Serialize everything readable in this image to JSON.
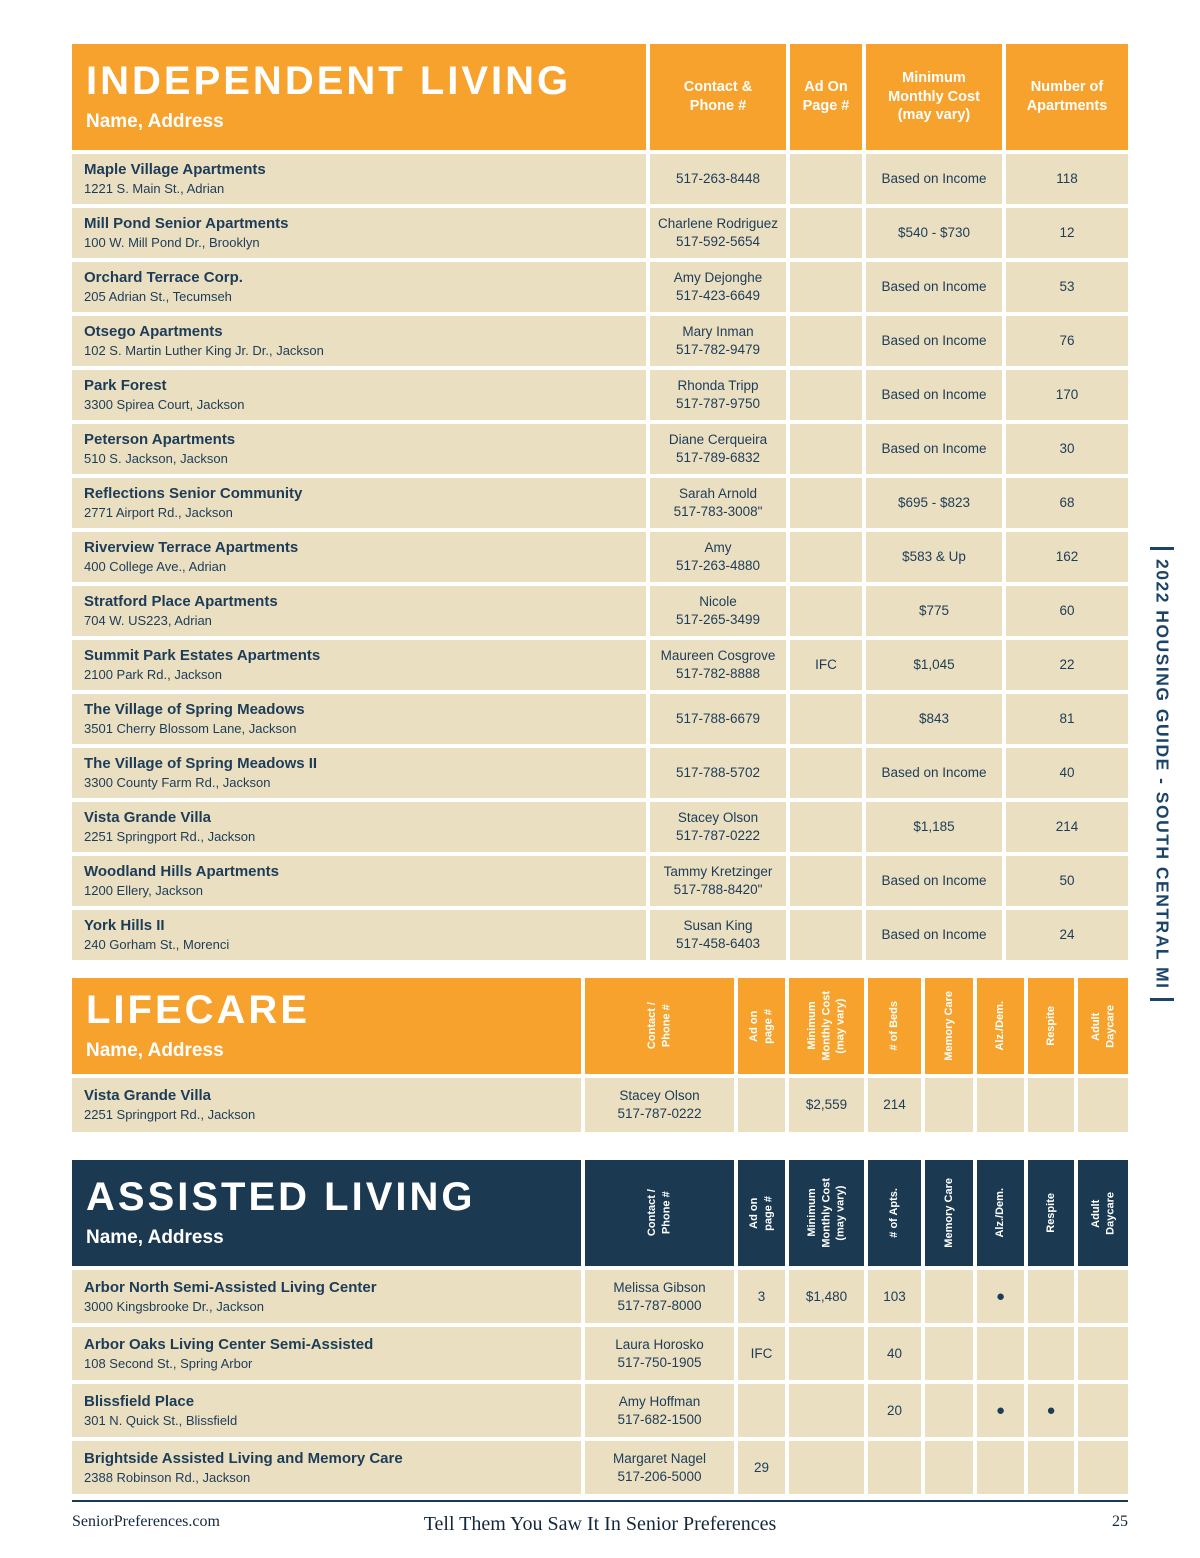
{
  "colors": {
    "orange": "#F6A22D",
    "navy_header": "#1B3A52",
    "row_beige": "#EBDFC1",
    "text_navy": "#1C3C58",
    "sidebar_navy": "#1C4468"
  },
  "sidebar": {
    "text": "2022 HOUSING GUIDE - SOUTH CENTRAL MI"
  },
  "footer": {
    "site": "SeniorPreferences.com",
    "tagline": "Tell Them You Saw It In Senior Preferences",
    "page_number": "25"
  },
  "independent_living": {
    "title": "INDEPENDENT LIVING",
    "subtitle": "Name, Address",
    "columns": [
      "Contact &\nPhone #",
      "Ad On\nPage #",
      "Minimum\nMonthly Cost\n(may vary)",
      "Number of\nApartments"
    ],
    "rows": [
      {
        "name": "Maple Village Apartments",
        "address": "1221 S. Main St., Adrian",
        "contact": "517-263-8448",
        "ad_page": "",
        "cost": "Based on Income",
        "apartments": "118"
      },
      {
        "name": "Mill Pond Senior Apartments",
        "address": "100 W. Mill Pond Dr., Brooklyn",
        "contact": "Charlene Rodriguez\n517-592-5654",
        "ad_page": "",
        "cost": "$540 - $730",
        "apartments": "12"
      },
      {
        "name": "Orchard Terrace Corp.",
        "address": "205 Adrian St., Tecumseh",
        "contact": "Amy Dejonghe\n517-423-6649",
        "ad_page": "",
        "cost": "Based on Income",
        "apartments": "53"
      },
      {
        "name": "Otsego Apartments",
        "address": "102 S. Martin Luther King Jr. Dr., Jackson",
        "contact": "Mary Inman\n517-782-9479",
        "ad_page": "",
        "cost": "Based on Income",
        "apartments": "76"
      },
      {
        "name": "Park Forest",
        "address": "3300 Spirea Court, Jackson",
        "contact": "Rhonda Tripp\n517-787-9750",
        "ad_page": "",
        "cost": "Based on Income",
        "apartments": "170"
      },
      {
        "name": "Peterson Apartments",
        "address": "510 S. Jackson, Jackson",
        "contact": "Diane Cerqueira\n517-789-6832",
        "ad_page": "",
        "cost": "Based on Income",
        "apartments": "30"
      },
      {
        "name": "Reflections Senior Community",
        "address": "2771 Airport Rd., Jackson",
        "contact": "Sarah Arnold\n517-783-3008\"",
        "ad_page": "",
        "cost": "$695 - $823",
        "apartments": "68"
      },
      {
        "name": "Riverview Terrace Apartments",
        "address": "400 College Ave., Adrian",
        "contact": "Amy\n517-263-4880",
        "ad_page": "",
        "cost": "$583 & Up",
        "apartments": "162"
      },
      {
        "name": "Stratford Place Apartments",
        "address": "704 W. US223, Adrian",
        "contact": "Nicole\n517-265-3499",
        "ad_page": "",
        "cost": "$775",
        "apartments": "60"
      },
      {
        "name": "Summit Park Estates Apartments",
        "address": "2100 Park Rd., Jackson",
        "contact": "Maureen Cosgrove\n517-782-8888",
        "ad_page": "IFC",
        "cost": "$1,045",
        "apartments": "22"
      },
      {
        "name": "The Village of Spring Meadows",
        "address": "3501 Cherry Blossom Lane, Jackson",
        "contact": "517-788-6679",
        "ad_page": "",
        "cost": "$843",
        "apartments": "81"
      },
      {
        "name": "The Village of Spring Meadows II",
        "address": "3300 County Farm Rd., Jackson",
        "contact": "517-788-5702",
        "ad_page": "",
        "cost": "Based on Income",
        "apartments": "40"
      },
      {
        "name": "Vista Grande Villa",
        "address": "2251 Springport Rd., Jackson",
        "contact": "Stacey Olson\n517-787-0222",
        "ad_page": "",
        "cost": "$1,185",
        "apartments": "214"
      },
      {
        "name": "Woodland Hills Apartments",
        "address": "1200 Ellery, Jackson",
        "contact": "Tammy Kretzinger\n517-788-8420\"",
        "ad_page": "",
        "cost": "Based on Income",
        "apartments": "50"
      },
      {
        "name": "York Hills II",
        "address": "240 Gorham St., Morenci",
        "contact": "Susan King\n517-458-6403",
        "ad_page": "",
        "cost": "Based on Income",
        "apartments": "24"
      }
    ]
  },
  "lifecare": {
    "title": "LIFECARE",
    "subtitle": "Name, Address",
    "columns": [
      "Contact /\nPhone #",
      "Ad on\npage #",
      "Minimum\nMonthly Cost\n(may vary)",
      "# of Beds",
      "Memory Care",
      "Alz./Dem.",
      "Respite",
      "Adult\nDaycare"
    ],
    "rows": [
      {
        "name": "Vista Grande Villa",
        "address": "2251 Springport Rd., Jackson",
        "contact": "Stacey Olson\n517-787-0222",
        "ad_page": "",
        "cost": "$2,559",
        "beds": "214",
        "memory_care": "",
        "alz_dem": "",
        "respite": "",
        "adult_daycare": ""
      }
    ]
  },
  "assisted_living": {
    "title": "ASSISTED LIVING",
    "subtitle": "Name, Address",
    "columns": [
      "Contact /\nPhone #",
      "Ad on\npage #",
      "Minimum\nMonthly Cost\n(may vary)",
      "# of Apts.",
      "Memory Care",
      "Alz./Dem.",
      "Respite",
      "Adult\nDaycare"
    ],
    "rows": [
      {
        "name": "Arbor North Semi-Assisted Living Center",
        "address": "3000 Kingsbrooke Dr., Jackson",
        "contact": "Melissa Gibson\n517-787-8000",
        "ad_page": "3",
        "cost": "$1,480",
        "apts": "103",
        "memory_care": "",
        "alz_dem": "●",
        "respite": "",
        "adult_daycare": ""
      },
      {
        "name": "Arbor Oaks Living Center Semi-Assisted",
        "address": "108 Second St., Spring Arbor",
        "contact": "Laura Horosko\n517-750-1905",
        "ad_page": "IFC",
        "cost": "",
        "apts": "40",
        "memory_care": "",
        "alz_dem": "",
        "respite": "",
        "adult_daycare": ""
      },
      {
        "name": "Blissfield Place",
        "address": "301 N. Quick St., Blissfield",
        "contact": "Amy Hoffman\n517-682-1500",
        "ad_page": "",
        "cost": "",
        "apts": "20",
        "memory_care": "",
        "alz_dem": "●",
        "respite": "●",
        "adult_daycare": ""
      },
      {
        "name": "Brightside Assisted Living and Memory Care",
        "address": "2388 Robinson Rd., Jackson",
        "contact": "Margaret Nagel\n517-206-5000",
        "ad_page": "29",
        "cost": "",
        "apts": "",
        "memory_care": "",
        "alz_dem": "",
        "respite": "",
        "adult_daycare": ""
      }
    ]
  }
}
